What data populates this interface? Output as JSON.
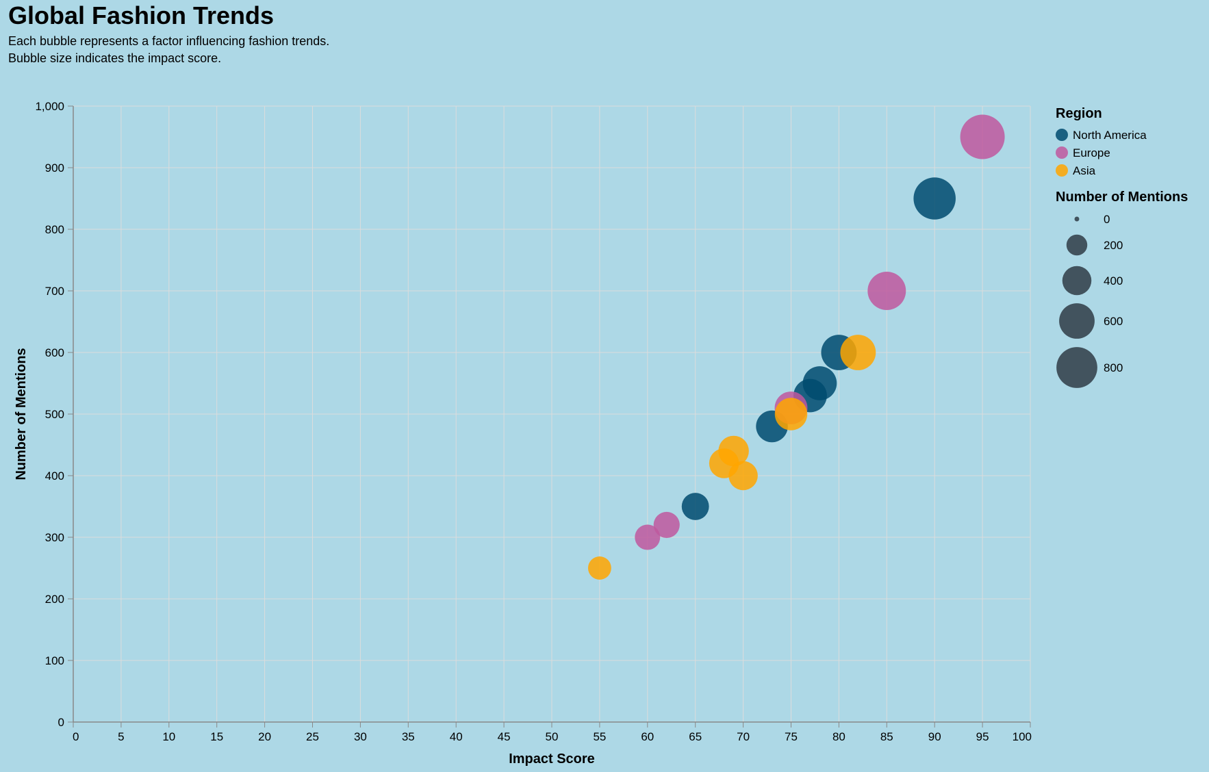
{
  "chart_data": {
    "type": "scatter",
    "title": "Global Fashion Trends",
    "subtitle": [
      "Each bubble represents a factor influencing fashion trends.",
      "Bubble size indicates the impact score."
    ],
    "xlabel": "Impact Score",
    "ylabel": "Number of Mentions",
    "xlim": [
      0,
      100
    ],
    "ylim": [
      0,
      1000
    ],
    "x_ticks": [
      "0",
      "5",
      "10",
      "15",
      "20",
      "25",
      "30",
      "35",
      "40",
      "45",
      "50",
      "55",
      "60",
      "65",
      "70",
      "75",
      "80",
      "85",
      "90",
      "95",
      "100"
    ],
    "y_ticks": [
      "0",
      "100",
      "200",
      "300",
      "400",
      "500",
      "600",
      "700",
      "800",
      "900",
      "1,000"
    ],
    "grid": true,
    "legend_position": "right",
    "size_encoding": "Number of Mentions",
    "series": [
      {
        "name": "North America",
        "color": "#004b6e",
        "points": [
          {
            "x": 90,
            "y": 850
          },
          {
            "x": 80,
            "y": 600
          },
          {
            "x": 78,
            "y": 550
          },
          {
            "x": 77,
            "y": 530
          },
          {
            "x": 73,
            "y": 480
          },
          {
            "x": 65,
            "y": 350
          }
        ]
      },
      {
        "name": "Europe",
        "color": "#c0589e",
        "points": [
          {
            "x": 95,
            "y": 950
          },
          {
            "x": 85,
            "y": 700
          },
          {
            "x": 75,
            "y": 510
          },
          {
            "x": 62,
            "y": 320
          },
          {
            "x": 60,
            "y": 300
          }
        ]
      },
      {
        "name": "Asia",
        "color": "#ffa600",
        "points": [
          {
            "x": 82,
            "y": 600
          },
          {
            "x": 75,
            "y": 500
          },
          {
            "x": 69,
            "y": 440
          },
          {
            "x": 68,
            "y": 420
          },
          {
            "x": 70,
            "y": 400
          },
          {
            "x": 55,
            "y": 250
          }
        ]
      }
    ],
    "legend": {
      "color_title": "Region",
      "color_items": [
        "North America",
        "Europe",
        "Asia"
      ],
      "size_title": "Number of Mentions",
      "size_items": [
        "0",
        "200",
        "400",
        "600",
        "800"
      ]
    }
  }
}
